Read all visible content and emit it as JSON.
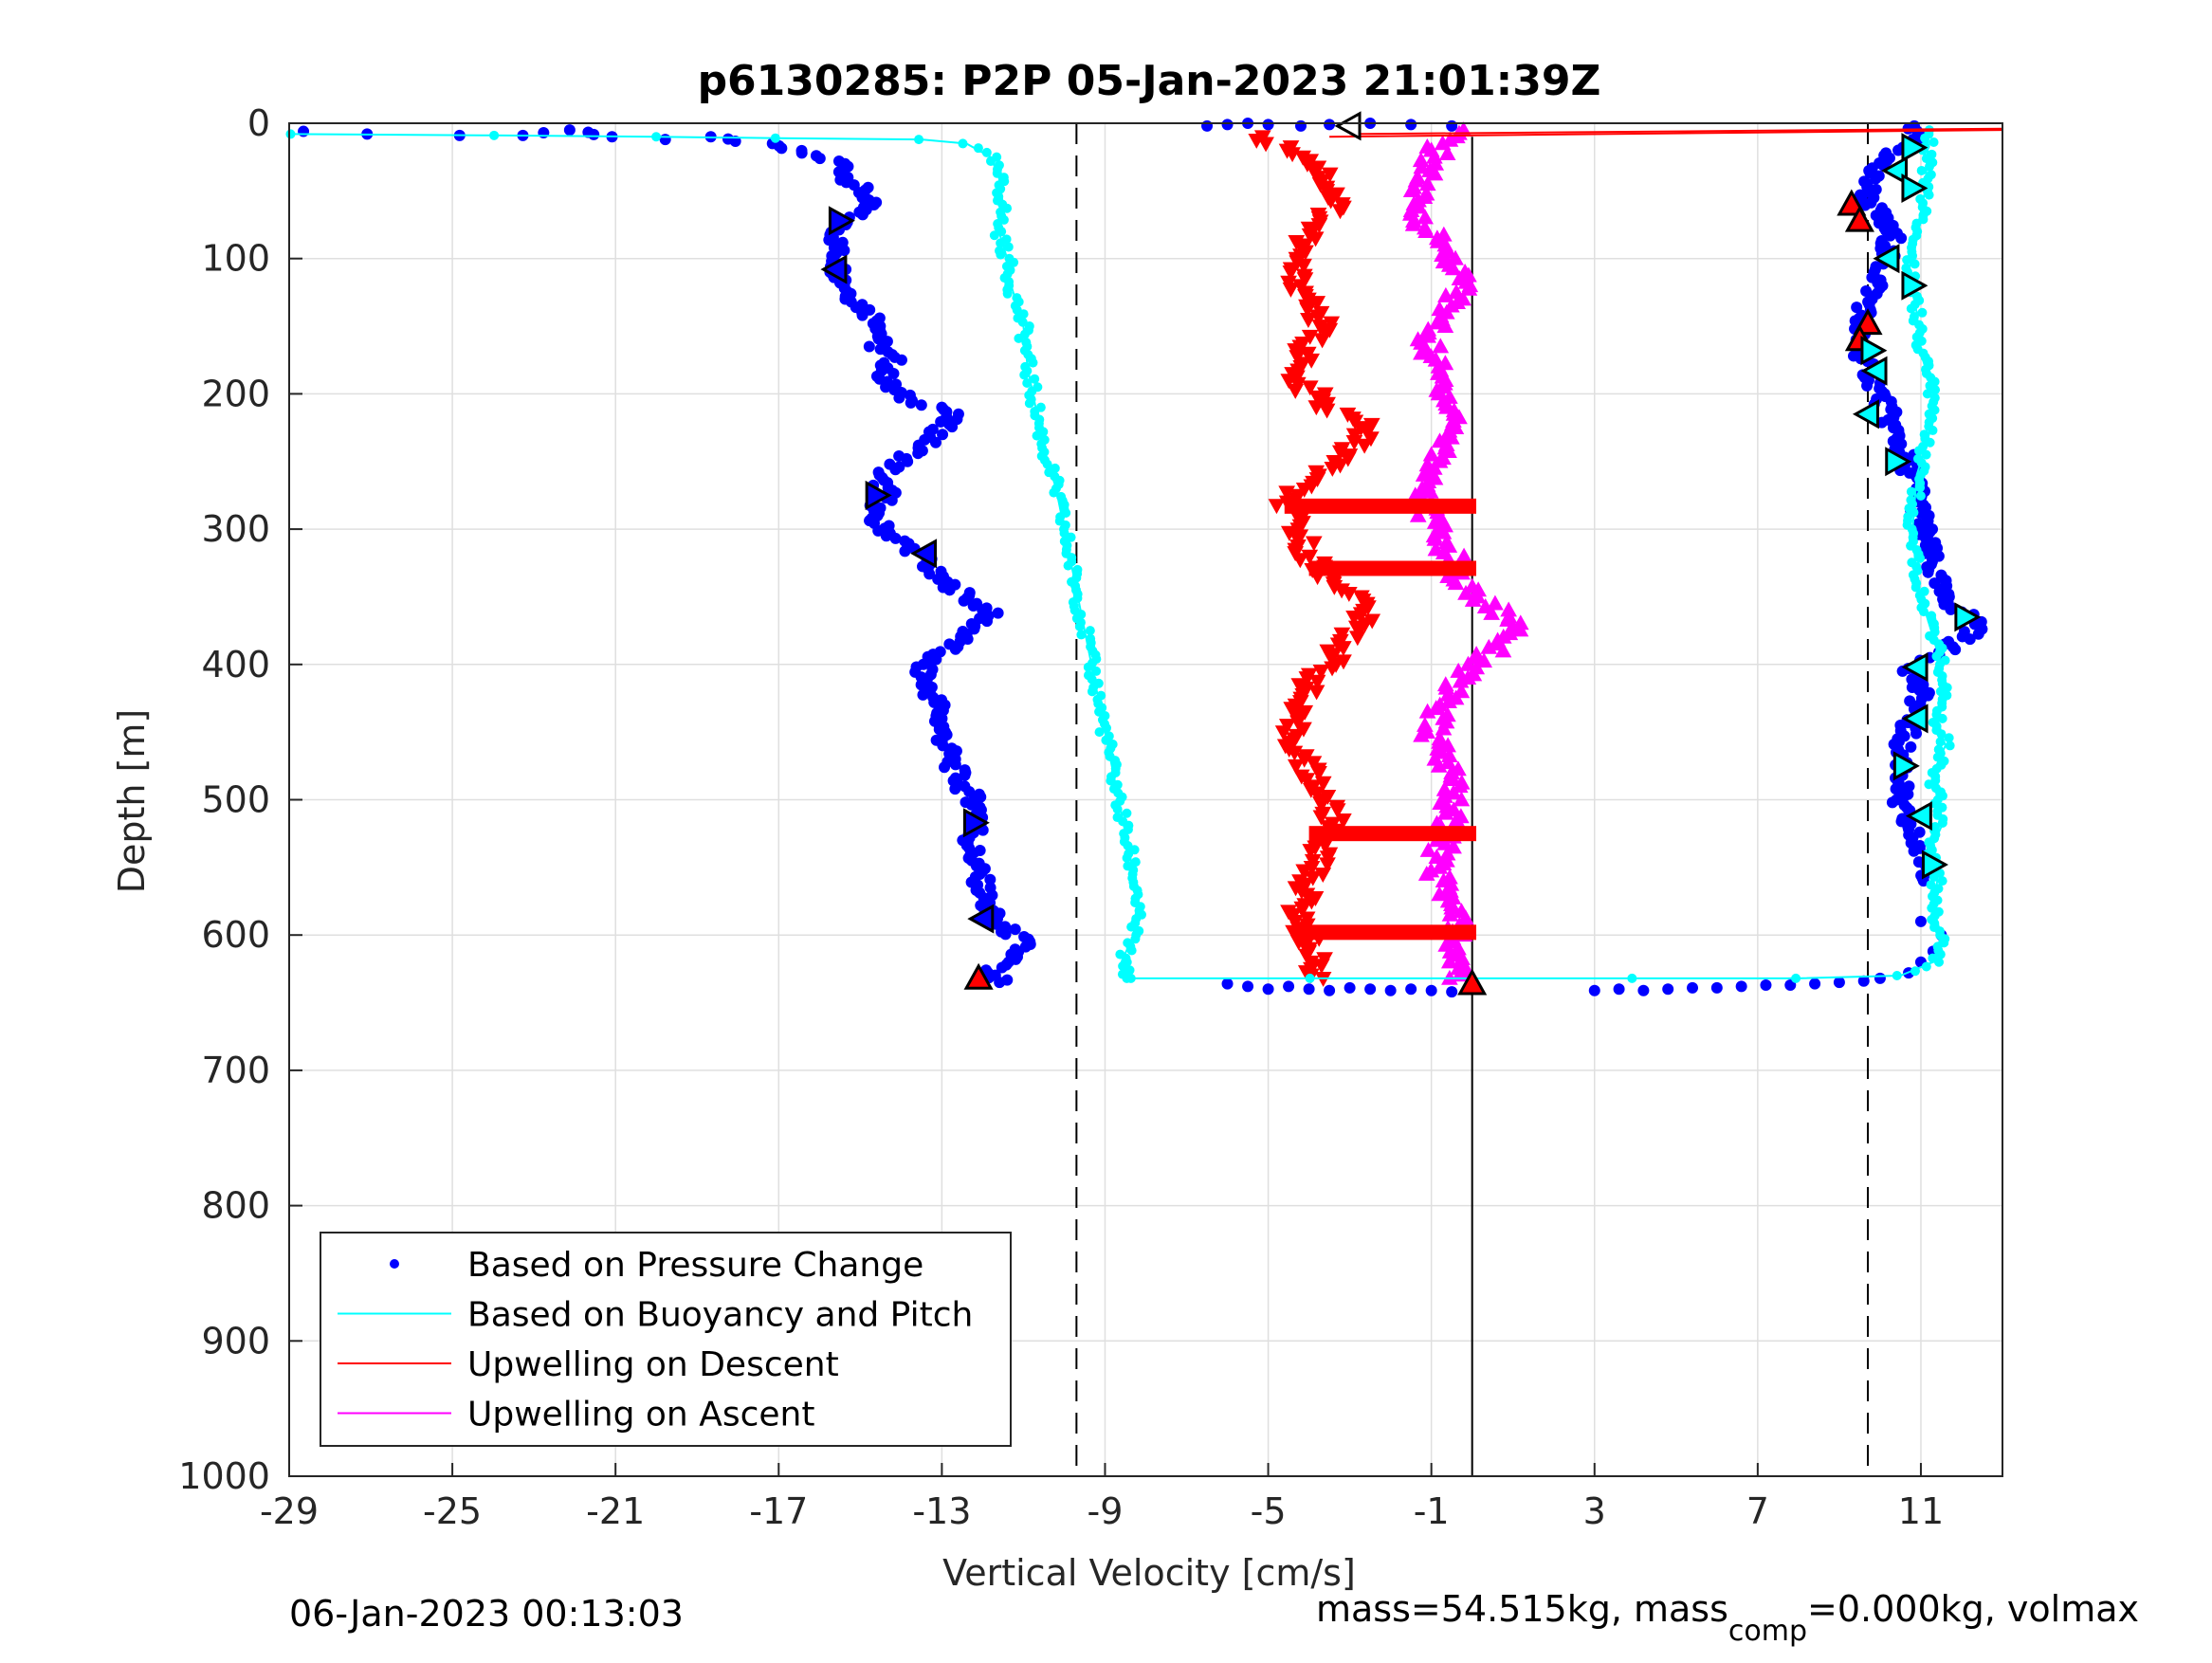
{
  "chart_data": {
    "type": "scatter",
    "title": "p6130285: P2P 05-Jan-2023 21:01:39Z",
    "xlabel": "Vertical Velocity [cm/s]",
    "ylabel": "Depth [m]",
    "xlim": [
      -29,
      13
    ],
    "ylim": [
      0,
      1000
    ],
    "y_reversed": true,
    "grid": true,
    "xticks": [
      "-29",
      "-25",
      "-21",
      "-17",
      "-13",
      "-9",
      "-5",
      "-1",
      "3",
      "7",
      "11"
    ],
    "yticks": [
      "0",
      "100",
      "200",
      "300",
      "400",
      "500",
      "600",
      "700",
      "800",
      "900",
      "1000"
    ],
    "legend_position": "bottom-left",
    "legend": [
      "Based on Pressure Change",
      "Based on Buoyancy and Pitch",
      "Upwelling on Descent",
      "Upwelling on Ascent"
    ],
    "reference_lines": {
      "dashed_x": [
        -9.7,
        9.7
      ],
      "solid_x": 0.0,
      "solid_x_from_depth": 10
    },
    "series": [
      {
        "name": "Based on Pressure Change",
        "kind": "points",
        "color": "#0000ff",
        "segments": [
          {
            "x": [
              -28.4,
              -27.3,
              -24.6,
              -23.3,
              -22.1,
              -21.0,
              -19.8,
              -18.9,
              -17.4,
              -16.4,
              -15.4,
              -15.3,
              -14.8,
              -14.9,
              -15.5,
              -15.6,
              -15.5,
              -15.2,
              -14.8,
              -14.4,
              -14.6,
              -14.2,
              -14.4,
              -14.3,
              -13.8,
              -13.0,
              -12.8,
              -13.1,
              -13.9,
              -14.6,
              -14.3,
              -14.8,
              -14.2,
              -13.4,
              -13.2,
              -12.6,
              -12.2,
              -11.8,
              -12.1,
              -12.7,
              -13.5,
              -13.4,
              -13.1,
              -13.0,
              -12.8,
              -12.5,
              -12.2,
              -12.0,
              -12.3,
              -12.2,
              -12.0,
              -11.9,
              -11.6,
              -11.0,
              -11.3,
              -12.0,
              -11.5
            ],
            "y": [
              6,
              8,
              9,
              9,
              5,
              10,
              12,
              10,
              15,
              22,
              30,
              40,
              55,
              62,
              75,
              90,
              110,
              128,
              140,
              150,
              165,
              175,
              185,
              195,
              205,
              210,
              215,
              230,
              248,
              262,
              275,
              290,
              305,
              322,
              335,
              345,
              355,
              360,
              370,
              385,
              400,
              415,
              430,
              450,
              470,
              490,
              500,
              515,
              530,
              545,
              565,
              580,
              592,
              605,
              618,
              628,
              635
            ]
          },
          {
            "x": [
              -6.5,
              -6.0,
              -5.5,
              -5.0,
              -4.2,
              -3.5,
              -2.5,
              -1.5,
              -0.5
            ],
            "y": [
              2,
              1,
              0,
              1,
              2,
              1,
              0,
              1,
              2
            ]
          },
          {
            "x": [
              -6.0,
              -5.5,
              -5.0,
              -4.5,
              -4.0,
              -3.5,
              -3.0,
              -2.5,
              -2.0,
              -1.5,
              -1.0,
              -0.5
            ],
            "y": [
              636,
              638,
              640,
              638,
              640,
              641,
              639,
              640,
              641,
              640,
              641,
              642
            ]
          },
          {
            "x": [
              3.0,
              3.6,
              4.2,
              4.8,
              5.4,
              6.0,
              6.6,
              7.2,
              7.8,
              8.4,
              9.0,
              9.6
            ],
            "y": [
              641,
              640,
              641,
              640,
              639,
              639,
              638,
              637,
              637,
              636,
              635,
              634
            ]
          },
          {
            "x": [
              10.0,
              10.7,
              11.0,
              11.3,
              11.5,
              11.0
            ],
            "y": [
              632,
              628,
              620,
              612,
              600,
              590
            ]
          },
          {
            "x": [
              10.6,
              10.9,
              10.3,
              9.8,
              9.7,
              10.0,
              10.3,
              10.1,
              9.9,
              9.6,
              9.4,
              9.7,
              10.0,
              10.3,
              10.6,
              10.9,
              11.0,
              11.2,
              11.5,
              12.2,
              12.5,
              11.8,
              10.8,
              11.0,
              10.7,
              10.5,
              10.6,
              10.4,
              10.7,
              11.0,
              11.3
            ],
            "y": [
              2,
              12,
              22,
              35,
              55,
              70,
              85,
              100,
              120,
              140,
              160,
              180,
              200,
              225,
              245,
              270,
              290,
              320,
              350,
              365,
              372,
              385,
              405,
              425,
              445,
              465,
              480,
              500,
              520,
              540,
              560
            ]
          }
        ]
      },
      {
        "name": "Based on Buoyancy and Pitch",
        "kind": "line",
        "color": "#00ffff",
        "segments": [
          {
            "x": [
              -29.0,
              -24.0,
              -20.0,
              -17.0,
              -13.5,
              -12.4,
              -11.8,
              -11.6,
              -11.5,
              -11.6,
              -11.4,
              -11.3,
              -11.0,
              -10.9,
              -10.7,
              -10.5,
              -10.2,
              -10.0,
              -9.8,
              -9.6,
              -9.4,
              -9.2,
              -9.0,
              -8.8,
              -8.6,
              -8.4,
              -8.2,
              -8.3,
              -8.6,
              -8.4
            ],
            "y": [
              8,
              9,
              10,
              11,
              12,
              15,
              25,
              40,
              60,
              80,
              100,
              120,
              150,
              180,
              210,
              240,
              270,
              300,
              330,
              360,
              390,
              420,
              450,
              480,
              510,
              540,
              570,
              600,
              620,
              632
            ]
          },
          {
            "x": [
              -8.4,
              -4.0,
              0.0,
              4.0,
              8.0,
              10.5,
              11.3,
              11.5,
              11.3,
              11.4,
              11.2,
              11.5,
              11.4,
              11.3,
              11.6,
              11.4,
              11.6,
              11.5,
              11.2,
              10.9,
              10.8,
              10.9,
              11.2,
              11.3,
              11.0,
              10.9,
              10.7,
              10.9,
              11.1,
              11.2
            ],
            "y": [
              632,
              632,
              632,
              632,
              632,
              630,
              620,
              600,
              580,
              560,
              540,
              520,
              500,
              480,
              460,
              440,
              420,
              400,
              370,
              340,
              300,
              260,
              230,
              200,
              170,
              140,
              110,
              80,
              50,
              5
            ]
          }
        ]
      },
      {
        "name": "Upwelling on Descent",
        "kind": "down-triangles",
        "color": "#ff0000",
        "segments": [
          {
            "x": [
              -5.4,
              -4.8,
              -4.0,
              -3.6,
              -3.3,
              -3.8,
              -4.2,
              -4.4,
              -4.0,
              -3.7,
              -4.1,
              -4.5,
              -3.9,
              -3.6,
              -3.0,
              -2.5,
              -2.9,
              -3.5,
              -4.2,
              -4.6,
              -4.3,
              -4.0,
              -3.6,
              -3.0,
              -2.6,
              -3.0,
              -3.5,
              -4.1,
              -4.5,
              -4.3,
              -4.0,
              -3.6,
              -3.4,
              -3.8,
              -4.1,
              -4.3,
              -4.0,
              -3.8,
              -3.9
            ],
            "y": [
              10,
              15,
              25,
              40,
              62,
              75,
              90,
              110,
              130,
              150,
              170,
              190,
              200,
              212,
              218,
              225,
              238,
              255,
              268,
              280,
              300,
              320,
              335,
              345,
              360,
              380,
              400,
              420,
              440,
              460,
              480,
              500,
              520,
              545,
              570,
              590,
              605,
              620,
              632
            ]
          }
        ]
      },
      {
        "name": "Upwelling on Ascent",
        "kind": "up-triangles",
        "color": "#ff00ff",
        "segments": [
          {
            "x": [
              -0.4,
              -0.8,
              -1.0,
              -1.3,
              -1.5,
              -1.0,
              -0.5,
              -0.2,
              -0.7,
              -1.1,
              -0.9,
              -0.6,
              -0.4,
              -0.7,
              -1.0,
              -1.2,
              -0.9,
              -0.5,
              -0.3,
              0.4,
              1.2,
              0.5,
              -0.3,
              -0.8,
              -1.0,
              -0.7,
              -0.4,
              -0.6,
              -0.9,
              -0.6,
              -0.4,
              -0.5,
              -0.3
            ],
            "y": [
              5,
              15,
              30,
              45,
              62,
              80,
              100,
              120,
              140,
              160,
              180,
              200,
              220,
              240,
              260,
              280,
              300,
              320,
              340,
              355,
              372,
              390,
              410,
              430,
              450,
              470,
              490,
              520,
              550,
              570,
              590,
              610,
              632
            ]
          }
        ]
      },
      {
        "name": "Descent horizontal bands",
        "kind": "bands",
        "color": "#ff0000",
        "bands": [
          {
            "x0": -4.6,
            "x1": 0.1,
            "y": 283
          },
          {
            "x0": -4.0,
            "x1": 0.1,
            "y": 329
          },
          {
            "x0": -4.0,
            "x1": 0.1,
            "y": 525
          },
          {
            "x0": -4.2,
            "x1": 0.1,
            "y": 598
          }
        ]
      },
      {
        "name": "Outlined triangle markers",
        "kind": "markers",
        "markers": [
          {
            "x": -3.0,
            "y": 2,
            "dir": "left",
            "fill": "#ffffff"
          },
          {
            "x": -15.5,
            "y": 72,
            "dir": "right",
            "fill": "#0000ff"
          },
          {
            "x": -15.6,
            "y": 108,
            "dir": "left",
            "fill": "#0000ff"
          },
          {
            "x": -14.6,
            "y": 275,
            "dir": "right",
            "fill": "#0000ff"
          },
          {
            "x": -13.4,
            "y": 318,
            "dir": "left",
            "fill": "#0000ff"
          },
          {
            "x": -12.2,
            "y": 517,
            "dir": "right",
            "fill": "#0000ff"
          },
          {
            "x": -12.0,
            "y": 588,
            "dir": "left",
            "fill": "#0000ff"
          },
          {
            "x": -12.1,
            "y": 632,
            "dir": "up",
            "fill": "#ff0000"
          },
          {
            "x": 0.0,
            "y": 636,
            "dir": "up",
            "fill": "#ff0000"
          },
          {
            "x": 9.3,
            "y": 60,
            "dir": "up",
            "fill": "#ff0000"
          },
          {
            "x": 9.5,
            "y": 72,
            "dir": "up",
            "fill": "#ff0000"
          },
          {
            "x": 9.7,
            "y": 148,
            "dir": "up",
            "fill": "#ff0000"
          },
          {
            "x": 9.5,
            "y": 160,
            "dir": "up",
            "fill": "#ff0000"
          },
          {
            "x": 10.8,
            "y": 18,
            "dir": "right",
            "fill": "#00ffff"
          },
          {
            "x": 10.4,
            "y": 35,
            "dir": "left",
            "fill": "#00ffff"
          },
          {
            "x": 10.8,
            "y": 48,
            "dir": "right",
            "fill": "#00ffff"
          },
          {
            "x": 10.2,
            "y": 100,
            "dir": "left",
            "fill": "#00ffff"
          },
          {
            "x": 10.8,
            "y": 120,
            "dir": "right",
            "fill": "#00ffff"
          },
          {
            "x": 9.8,
            "y": 168,
            "dir": "right",
            "fill": "#00ffff"
          },
          {
            "x": 9.9,
            "y": 183,
            "dir": "left",
            "fill": "#00ffff"
          },
          {
            "x": 9.7,
            "y": 215,
            "dir": "left",
            "fill": "#00ffff"
          },
          {
            "x": 10.4,
            "y": 250,
            "dir": "right",
            "fill": "#00ffff"
          },
          {
            "x": 12.1,
            "y": 365,
            "dir": "right",
            "fill": "#00ffff"
          },
          {
            "x": 10.9,
            "y": 402,
            "dir": "left",
            "fill": "#00ffff"
          },
          {
            "x": 10.9,
            "y": 440,
            "dir": "left",
            "fill": "#00ffff"
          },
          {
            "x": 10.6,
            "y": 475,
            "dir": "right",
            "fill": "#00ffff"
          },
          {
            "x": 11.0,
            "y": 512,
            "dir": "left",
            "fill": "#00ffff"
          },
          {
            "x": 11.3,
            "y": 548,
            "dir": "right",
            "fill": "#00ffff"
          }
        ]
      },
      {
        "name": "Surface flat red line",
        "kind": "line",
        "color": "#ff0000",
        "segments": [
          {
            "x": [
              -3.0,
              13.0
            ],
            "y": [
              8,
              4
            ]
          },
          {
            "x": [
              -3.5,
              13.0
            ],
            "y": [
              10,
              5
            ]
          }
        ]
      }
    ]
  },
  "footer": {
    "timestamp": "06-Jan-2023 00:13:03",
    "mass_pre": "mass=54.515kg, mass",
    "mass_sub": "comp",
    "mass_post": "=0.000kg, volmax"
  }
}
